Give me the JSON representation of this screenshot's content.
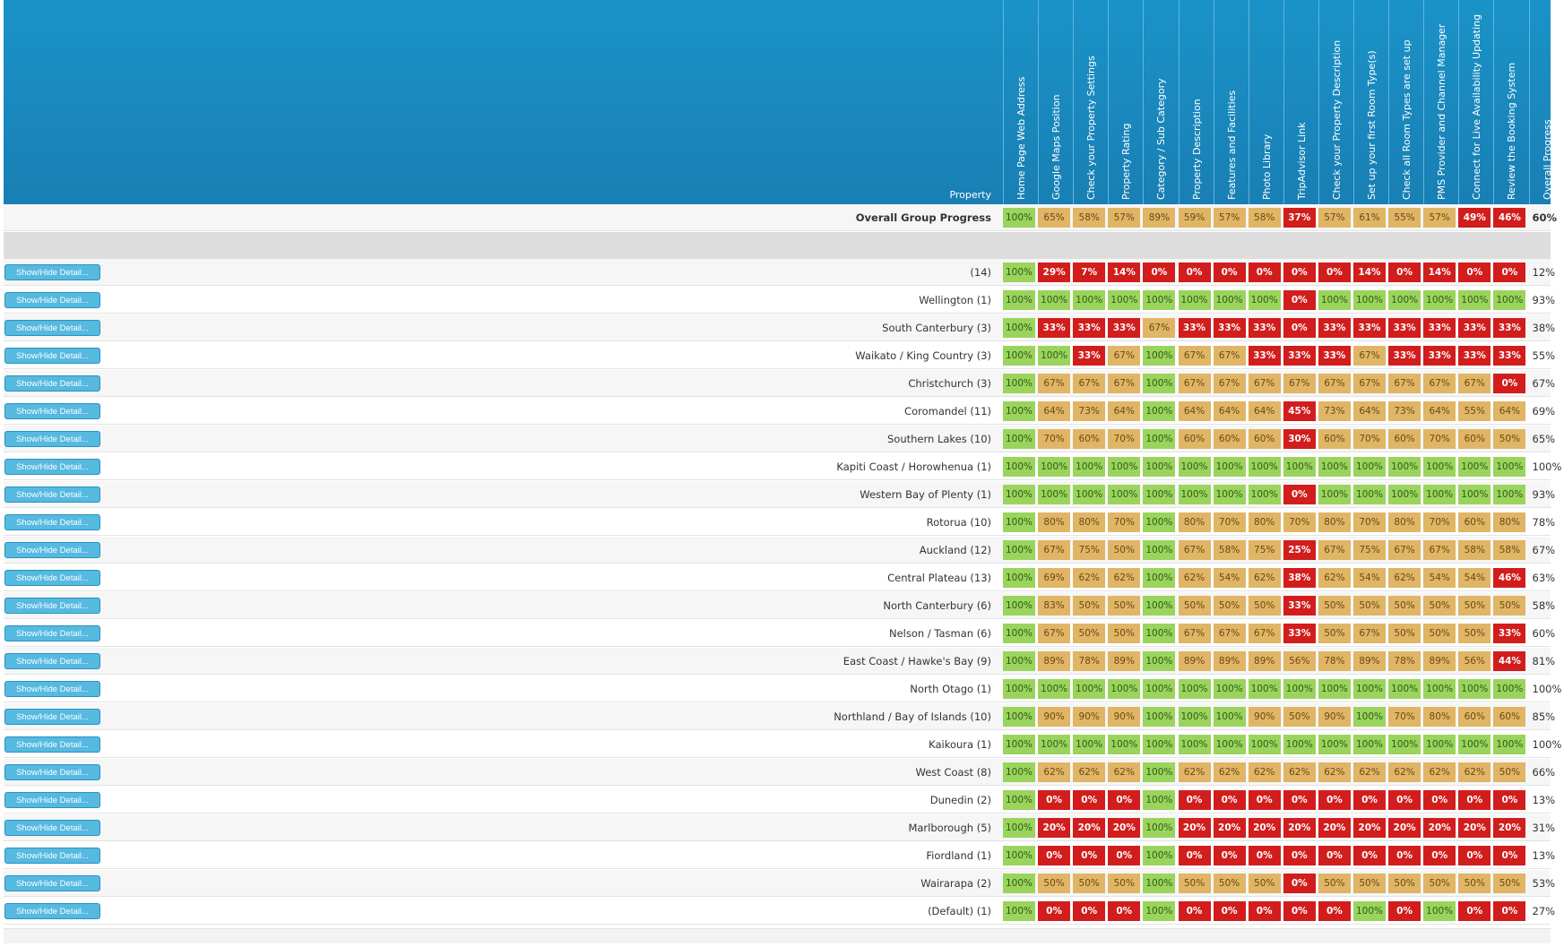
{
  "header": {
    "property_label": "Property",
    "columns": [
      "Home Page Web Address",
      "Google Maps Position",
      "Check your Property Settings",
      "Property Rating",
      "Category / Sub Category",
      "Property Description",
      "Features and Facilities",
      "Photo Library",
      "TripAdvisor Link",
      "Check your Property Description",
      "Set up your first Room Type(s)",
      "Check all Room Types are set up",
      "PMS Provider and Channel Manager",
      "Connect for Live Availability Updating",
      "Review the Booking System"
    ],
    "overall_column": "Overall Progress"
  },
  "status_colors": {
    "good": "#9ad45c",
    "partial": "#e0b565",
    "bad": "#d21d1d"
  },
  "group_row": {
    "label": "Overall Group Progress",
    "values": [
      "100%",
      "65%",
      "58%",
      "57%",
      "89%",
      "59%",
      "57%",
      "58%",
      "37%",
      "57%",
      "61%",
      "55%",
      "57%",
      "49%",
      "46%"
    ],
    "overall": "60%"
  },
  "button_label": "Show/Hide Detail...",
  "rows": [
    {
      "name": "(14)",
      "values": [
        "100%",
        "29%",
        "7%",
        "14%",
        "0%",
        "0%",
        "0%",
        "0%",
        "0%",
        "0%",
        "14%",
        "0%",
        "14%",
        "0%",
        "0%"
      ],
      "overall": "12%"
    },
    {
      "name": "Wellington (1)",
      "values": [
        "100%",
        "100%",
        "100%",
        "100%",
        "100%",
        "100%",
        "100%",
        "100%",
        "0%",
        "100%",
        "100%",
        "100%",
        "100%",
        "100%",
        "100%"
      ],
      "overall": "93%"
    },
    {
      "name": "South Canterbury (3)",
      "values": [
        "100%",
        "33%",
        "33%",
        "33%",
        "67%",
        "33%",
        "33%",
        "33%",
        "0%",
        "33%",
        "33%",
        "33%",
        "33%",
        "33%",
        "33%"
      ],
      "overall": "38%"
    },
    {
      "name": "Waikato / King Country (3)",
      "values": [
        "100%",
        "100%",
        "33%",
        "67%",
        "100%",
        "67%",
        "67%",
        "33%",
        "33%",
        "33%",
        "67%",
        "33%",
        "33%",
        "33%",
        "33%"
      ],
      "overall": "55%"
    },
    {
      "name": "Christchurch (3)",
      "values": [
        "100%",
        "67%",
        "67%",
        "67%",
        "100%",
        "67%",
        "67%",
        "67%",
        "67%",
        "67%",
        "67%",
        "67%",
        "67%",
        "67%",
        "0%"
      ],
      "overall": "67%"
    },
    {
      "name": "Coromandel (11)",
      "values": [
        "100%",
        "64%",
        "73%",
        "64%",
        "100%",
        "64%",
        "64%",
        "64%",
        "45%",
        "73%",
        "64%",
        "73%",
        "64%",
        "55%",
        "64%"
      ],
      "overall": "69%"
    },
    {
      "name": "Southern Lakes (10)",
      "values": [
        "100%",
        "70%",
        "60%",
        "70%",
        "100%",
        "60%",
        "60%",
        "60%",
        "30%",
        "60%",
        "70%",
        "60%",
        "70%",
        "60%",
        "50%"
      ],
      "overall": "65%"
    },
    {
      "name": "Kapiti Coast / Horowhenua (1)",
      "values": [
        "100%",
        "100%",
        "100%",
        "100%",
        "100%",
        "100%",
        "100%",
        "100%",
        "100%",
        "100%",
        "100%",
        "100%",
        "100%",
        "100%",
        "100%"
      ],
      "overall": "100%"
    },
    {
      "name": "Western Bay of Plenty (1)",
      "values": [
        "100%",
        "100%",
        "100%",
        "100%",
        "100%",
        "100%",
        "100%",
        "100%",
        "0%",
        "100%",
        "100%",
        "100%",
        "100%",
        "100%",
        "100%"
      ],
      "overall": "93%"
    },
    {
      "name": "Rotorua (10)",
      "values": [
        "100%",
        "80%",
        "80%",
        "70%",
        "100%",
        "80%",
        "70%",
        "80%",
        "70%",
        "80%",
        "70%",
        "80%",
        "70%",
        "60%",
        "80%"
      ],
      "overall": "78%"
    },
    {
      "name": "Auckland (12)",
      "values": [
        "100%",
        "67%",
        "75%",
        "50%",
        "100%",
        "67%",
        "58%",
        "75%",
        "25%",
        "67%",
        "75%",
        "67%",
        "67%",
        "58%",
        "58%"
      ],
      "overall": "67%"
    },
    {
      "name": "Central Plateau (13)",
      "values": [
        "100%",
        "69%",
        "62%",
        "62%",
        "100%",
        "62%",
        "54%",
        "62%",
        "38%",
        "62%",
        "54%",
        "62%",
        "54%",
        "54%",
        "46%"
      ],
      "overall": "63%"
    },
    {
      "name": "North Canterbury (6)",
      "values": [
        "100%",
        "83%",
        "50%",
        "50%",
        "100%",
        "50%",
        "50%",
        "50%",
        "33%",
        "50%",
        "50%",
        "50%",
        "50%",
        "50%",
        "50%"
      ],
      "overall": "58%"
    },
    {
      "name": "Nelson / Tasman (6)",
      "values": [
        "100%",
        "67%",
        "50%",
        "50%",
        "100%",
        "67%",
        "67%",
        "67%",
        "33%",
        "50%",
        "67%",
        "50%",
        "50%",
        "50%",
        "33%"
      ],
      "overall": "60%"
    },
    {
      "name": "East Coast / Hawke's Bay (9)",
      "values": [
        "100%",
        "89%",
        "78%",
        "89%",
        "100%",
        "89%",
        "89%",
        "89%",
        "56%",
        "78%",
        "89%",
        "78%",
        "89%",
        "56%",
        "44%"
      ],
      "overall": "81%"
    },
    {
      "name": "North Otago (1)",
      "values": [
        "100%",
        "100%",
        "100%",
        "100%",
        "100%",
        "100%",
        "100%",
        "100%",
        "100%",
        "100%",
        "100%",
        "100%",
        "100%",
        "100%",
        "100%"
      ],
      "overall": "100%"
    },
    {
      "name": "Northland / Bay of Islands (10)",
      "values": [
        "100%",
        "90%",
        "90%",
        "90%",
        "100%",
        "100%",
        "100%",
        "90%",
        "50%",
        "90%",
        "100%",
        "70%",
        "80%",
        "60%",
        "60%"
      ],
      "overall": "85%"
    },
    {
      "name": "Kaikoura (1)",
      "values": [
        "100%",
        "100%",
        "100%",
        "100%",
        "100%",
        "100%",
        "100%",
        "100%",
        "100%",
        "100%",
        "100%",
        "100%",
        "100%",
        "100%",
        "100%"
      ],
      "overall": "100%"
    },
    {
      "name": "West Coast (8)",
      "values": [
        "100%",
        "62%",
        "62%",
        "62%",
        "100%",
        "62%",
        "62%",
        "62%",
        "62%",
        "62%",
        "62%",
        "62%",
        "62%",
        "62%",
        "50%"
      ],
      "overall": "66%"
    },
    {
      "name": "Dunedin (2)",
      "values": [
        "100%",
        "0%",
        "0%",
        "0%",
        "100%",
        "0%",
        "0%",
        "0%",
        "0%",
        "0%",
        "0%",
        "0%",
        "0%",
        "0%",
        "0%"
      ],
      "overall": "13%"
    },
    {
      "name": "Marlborough (5)",
      "values": [
        "100%",
        "20%",
        "20%",
        "20%",
        "100%",
        "20%",
        "20%",
        "20%",
        "20%",
        "20%",
        "20%",
        "20%",
        "20%",
        "20%",
        "20%"
      ],
      "overall": "31%"
    },
    {
      "name": "Fiordland (1)",
      "values": [
        "100%",
        "0%",
        "0%",
        "0%",
        "100%",
        "0%",
        "0%",
        "0%",
        "0%",
        "0%",
        "0%",
        "0%",
        "0%",
        "0%",
        "0%"
      ],
      "overall": "13%"
    },
    {
      "name": "Wairarapa (2)",
      "values": [
        "100%",
        "50%",
        "50%",
        "50%",
        "100%",
        "50%",
        "50%",
        "50%",
        "0%",
        "50%",
        "50%",
        "50%",
        "50%",
        "50%",
        "50%"
      ],
      "overall": "53%"
    },
    {
      "name": "(Default) (1)",
      "values": [
        "100%",
        "0%",
        "0%",
        "0%",
        "100%",
        "0%",
        "0%",
        "0%",
        "0%",
        "0%",
        "100%",
        "0%",
        "100%",
        "0%",
        "0%"
      ],
      "overall": "27%"
    }
  ]
}
